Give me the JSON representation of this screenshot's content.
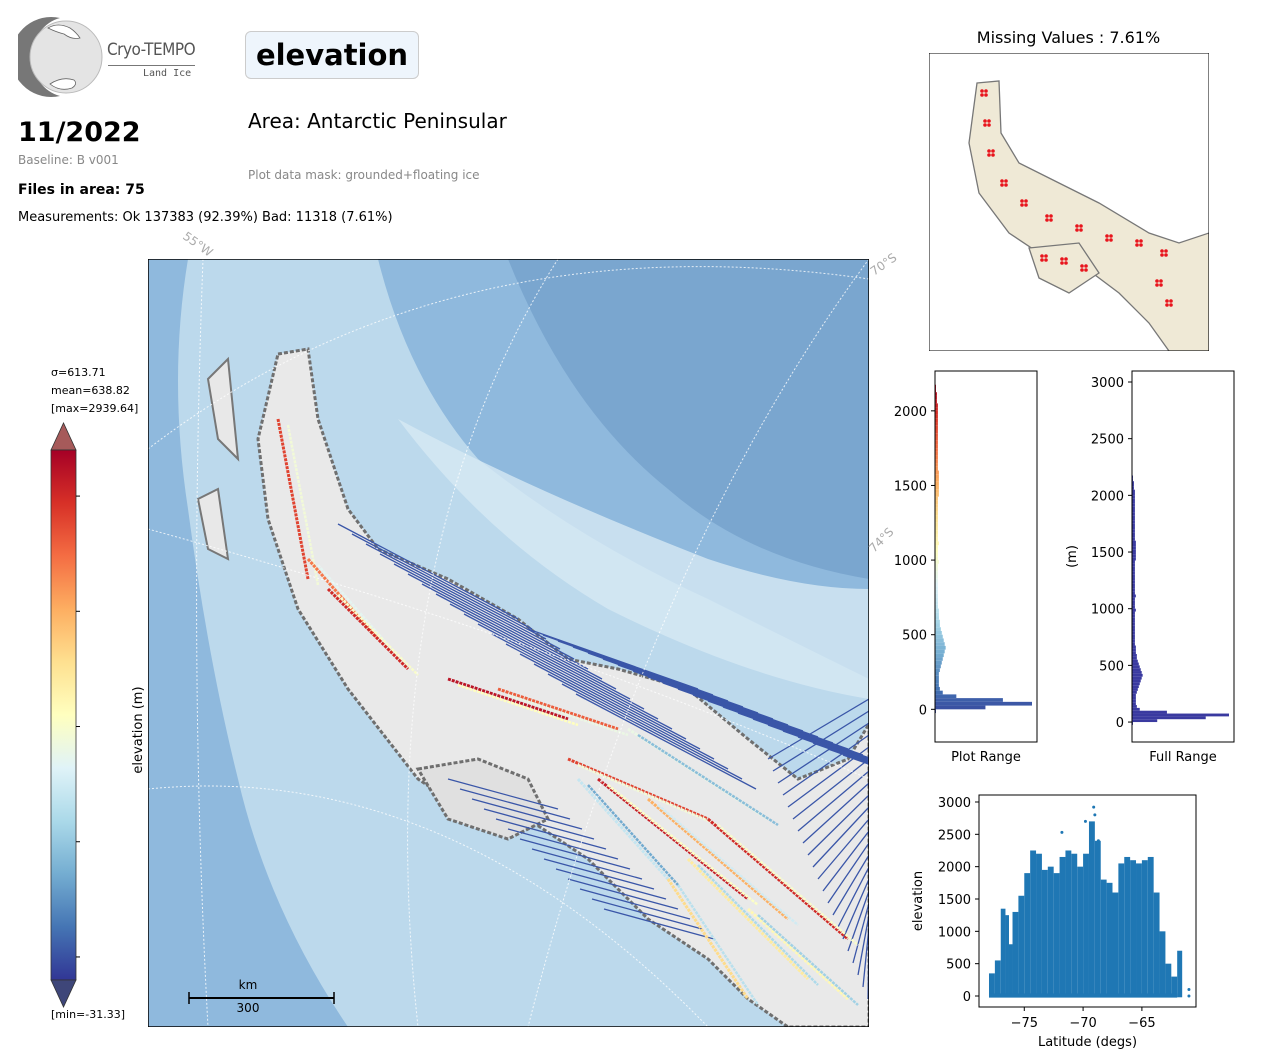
{
  "header": {
    "logo_text": "Cryo-TEMPO",
    "logo_subtext": "Land Ice",
    "variable": "elevation",
    "date": "11/2022",
    "baseline": "Baseline: B v001",
    "files": "Files in area: 75",
    "measurements": "Measurements: Ok 137383 (92.39%) Bad: 11318 (7.61%)",
    "area": "Area: Antarctic Peninsular",
    "mask": "Plot data mask: grounded+floating ice"
  },
  "colorbar": {
    "stats": [
      "σ=613.71",
      "mean=638.82",
      "[max=2939.64]"
    ],
    "min_label": "[min=-31.33]",
    "label": "elevation (m)",
    "ticks": [
      "0",
      "500",
      "1000",
      "1500",
      "2000"
    ],
    "tick_values": [
      0,
      500,
      1000,
      1500,
      2000
    ],
    "range": [
      -100,
      2200
    ],
    "colormap": [
      "#313695",
      "#4575b4",
      "#74add1",
      "#abd9e9",
      "#e0f3f8",
      "#ffffbf",
      "#fee090",
      "#fdae61",
      "#f46d43",
      "#d73027",
      "#a50026"
    ]
  },
  "map": {
    "graticule_labels": [
      "55°W",
      "70°S",
      "74°S"
    ],
    "scale_unit": "km",
    "scale_value": "300",
    "colors": {
      "ocean_deep": "#7aa6cf",
      "ocean_mid": "#8fb9dd",
      "shelf": "#bcd9ec",
      "track": "#3a56a8"
    }
  },
  "missing": {
    "title": "Missing Values : 7.61%",
    "colors": {
      "land": "#efe9d6",
      "missing": "#e8141c",
      "coast": "#777777"
    }
  },
  "chart_data": [
    {
      "type": "bar",
      "orientation": "horizontal",
      "name": "hist-plot-range",
      "xlabel": "Plot Range",
      "ylabel": "",
      "ylim": [
        -219,
        2267
      ],
      "yticks": [
        0,
        500,
        1000,
        1500,
        2000
      ],
      "bin_width": 25,
      "bin_start": -25,
      "counts": [
        1,
        52,
        100,
        70,
        22,
        8,
        5,
        4,
        4,
        4,
        4,
        5,
        6,
        7,
        8,
        9,
        10,
        11,
        10,
        9,
        8,
        7,
        6,
        5,
        5,
        4,
        4,
        4,
        3,
        3,
        3,
        3,
        3,
        3,
        3,
        3,
        3,
        3,
        3,
        3,
        4,
        3,
        3,
        3,
        3,
        4,
        3,
        3,
        3,
        3,
        3,
        3,
        3,
        3,
        3,
        3,
        3,
        3,
        4,
        4,
        4,
        4,
        4,
        4,
        4,
        3,
        3,
        3,
        3,
        3,
        3,
        3,
        3,
        3,
        3,
        3,
        3,
        3,
        3,
        3,
        3,
        3,
        3,
        2,
        2,
        2,
        1,
        1
      ]
    },
    {
      "type": "bar",
      "orientation": "horizontal",
      "name": "hist-full-range",
      "xlabel": "Full Range",
      "ylabel": "(m)",
      "ylim": [
        -176,
        3097
      ],
      "yticks": [
        0,
        500,
        1000,
        1500,
        2000,
        2500,
        3000
      ],
      "bin_width": 25,
      "bin_start": -25,
      "counts": [
        1,
        26,
        76,
        100,
        36,
        8,
        5,
        4,
        4,
        4,
        4,
        5,
        6,
        7,
        8,
        9,
        10,
        11,
        10,
        9,
        8,
        7,
        6,
        5,
        5,
        4,
        4,
        4,
        3,
        3,
        3,
        3,
        3,
        3,
        3,
        3,
        3,
        3,
        3,
        3,
        4,
        3,
        3,
        3,
        3,
        4,
        3,
        3,
        3,
        3,
        3,
        3,
        3,
        3,
        3,
        3,
        3,
        3,
        4,
        4,
        4,
        4,
        4,
        4,
        4,
        3,
        3,
        3,
        3,
        3,
        3,
        3,
        3,
        3,
        3,
        3,
        3,
        3,
        3,
        3,
        3,
        3,
        3,
        2,
        2,
        2,
        1,
        1
      ]
    },
    {
      "type": "scatter",
      "name": "elevation-vs-latitude",
      "xlabel": "Latitude (degs)",
      "ylabel": "elevation",
      "xlim": [
        -78.85,
        -60.4
      ],
      "ylim": [
        -170,
        3108
      ],
      "xticks": [
        -75,
        -70,
        -65
      ],
      "xtick_labels": [
        "−75",
        "−70",
        "−65"
      ],
      "yticks": [
        0,
        500,
        1000,
        1500,
        2000,
        2500,
        3000
      ],
      "color": "#1f77b4",
      "column_envelope": [
        [
          -78,
          350
        ],
        [
          -77.5,
          550
        ],
        [
          -77,
          1350
        ],
        [
          -76.6,
          1250
        ],
        [
          -76.3,
          800
        ],
        [
          -76,
          1300
        ],
        [
          -75.5,
          1550
        ],
        [
          -75,
          1900
        ],
        [
          -74.5,
          2250
        ],
        [
          -74,
          2200
        ],
        [
          -73.5,
          1950
        ],
        [
          -73,
          2000
        ],
        [
          -72.5,
          1900
        ],
        [
          -72,
          2150
        ],
        [
          -71.5,
          2250
        ],
        [
          -71,
          2200
        ],
        [
          -70.5,
          2000
        ],
        [
          -70,
          2200
        ],
        [
          -69.5,
          2700
        ],
        [
          -69,
          2400
        ],
        [
          -68.5,
          1800
        ],
        [
          -68,
          1750
        ],
        [
          -67.5,
          1600
        ],
        [
          -67,
          2050
        ],
        [
          -66.5,
          2150
        ],
        [
          -66,
          2100
        ],
        [
          -65.5,
          2050
        ],
        [
          -65,
          2100
        ],
        [
          -64.5,
          2150
        ],
        [
          -64,
          1600
        ],
        [
          -63.5,
          1000
        ],
        [
          -63,
          500
        ],
        [
          -62.5,
          300
        ],
        [
          -62,
          700
        ]
      ],
      "points": [
        [
          -69.1,
          2920
        ],
        [
          -69.0,
          2800
        ],
        [
          -71.8,
          2530
        ],
        [
          -69.8,
          2700
        ],
        [
          -61,
          100
        ],
        [
          -61,
          0
        ],
        [
          -68.7,
          2400
        ]
      ]
    }
  ]
}
